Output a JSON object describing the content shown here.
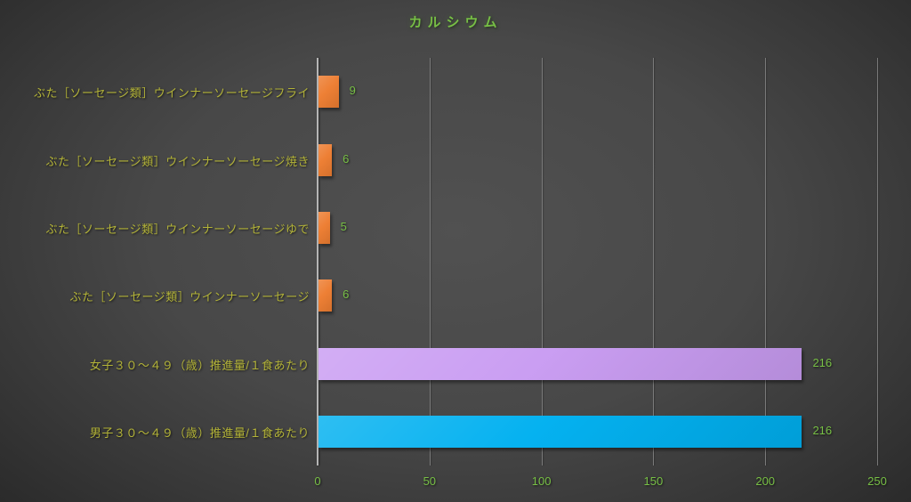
{
  "chart_data": {
    "type": "bar",
    "orientation": "horizontal",
    "title": "カルシウム",
    "categories": [
      "ぶた［ソーセージ類］ウインナーソーセージフライ",
      "ぶた［ソーセージ類］ウインナーソーセージ焼き",
      "ぶた［ソーセージ類］ウインナーソーセージゆで",
      "ぶた［ソーセージ類］ウインナーソーセージ",
      "女子３０～４９（歳）推進量/１食あたり",
      "男子３０～４９（歳）推進量/１食あたり"
    ],
    "values": [
      9,
      6,
      5,
      6,
      216,
      216
    ],
    "data_labels": [
      "9",
      "6",
      "5",
      "6",
      "216",
      "216"
    ],
    "bar_colors": [
      "#ed7d31",
      "#ed7d31",
      "#ed7d31",
      "#ed7d31",
      "#c99cf2",
      "#00b0f0"
    ],
    "xlim": [
      0,
      250
    ],
    "x_ticks": [
      "0",
      "50",
      "100",
      "150",
      "200",
      "250"
    ],
    "grid": true,
    "legend": "none",
    "colors": {
      "title_text": "#77bf45",
      "category_text": "#b3b338",
      "value_text": "#77bf45",
      "tick_text": "#77bf45",
      "axis_line": "#b5b5b5",
      "gridline": "#7a7a7a",
      "background_center": "#515151",
      "background_edge": "#262626"
    }
  }
}
